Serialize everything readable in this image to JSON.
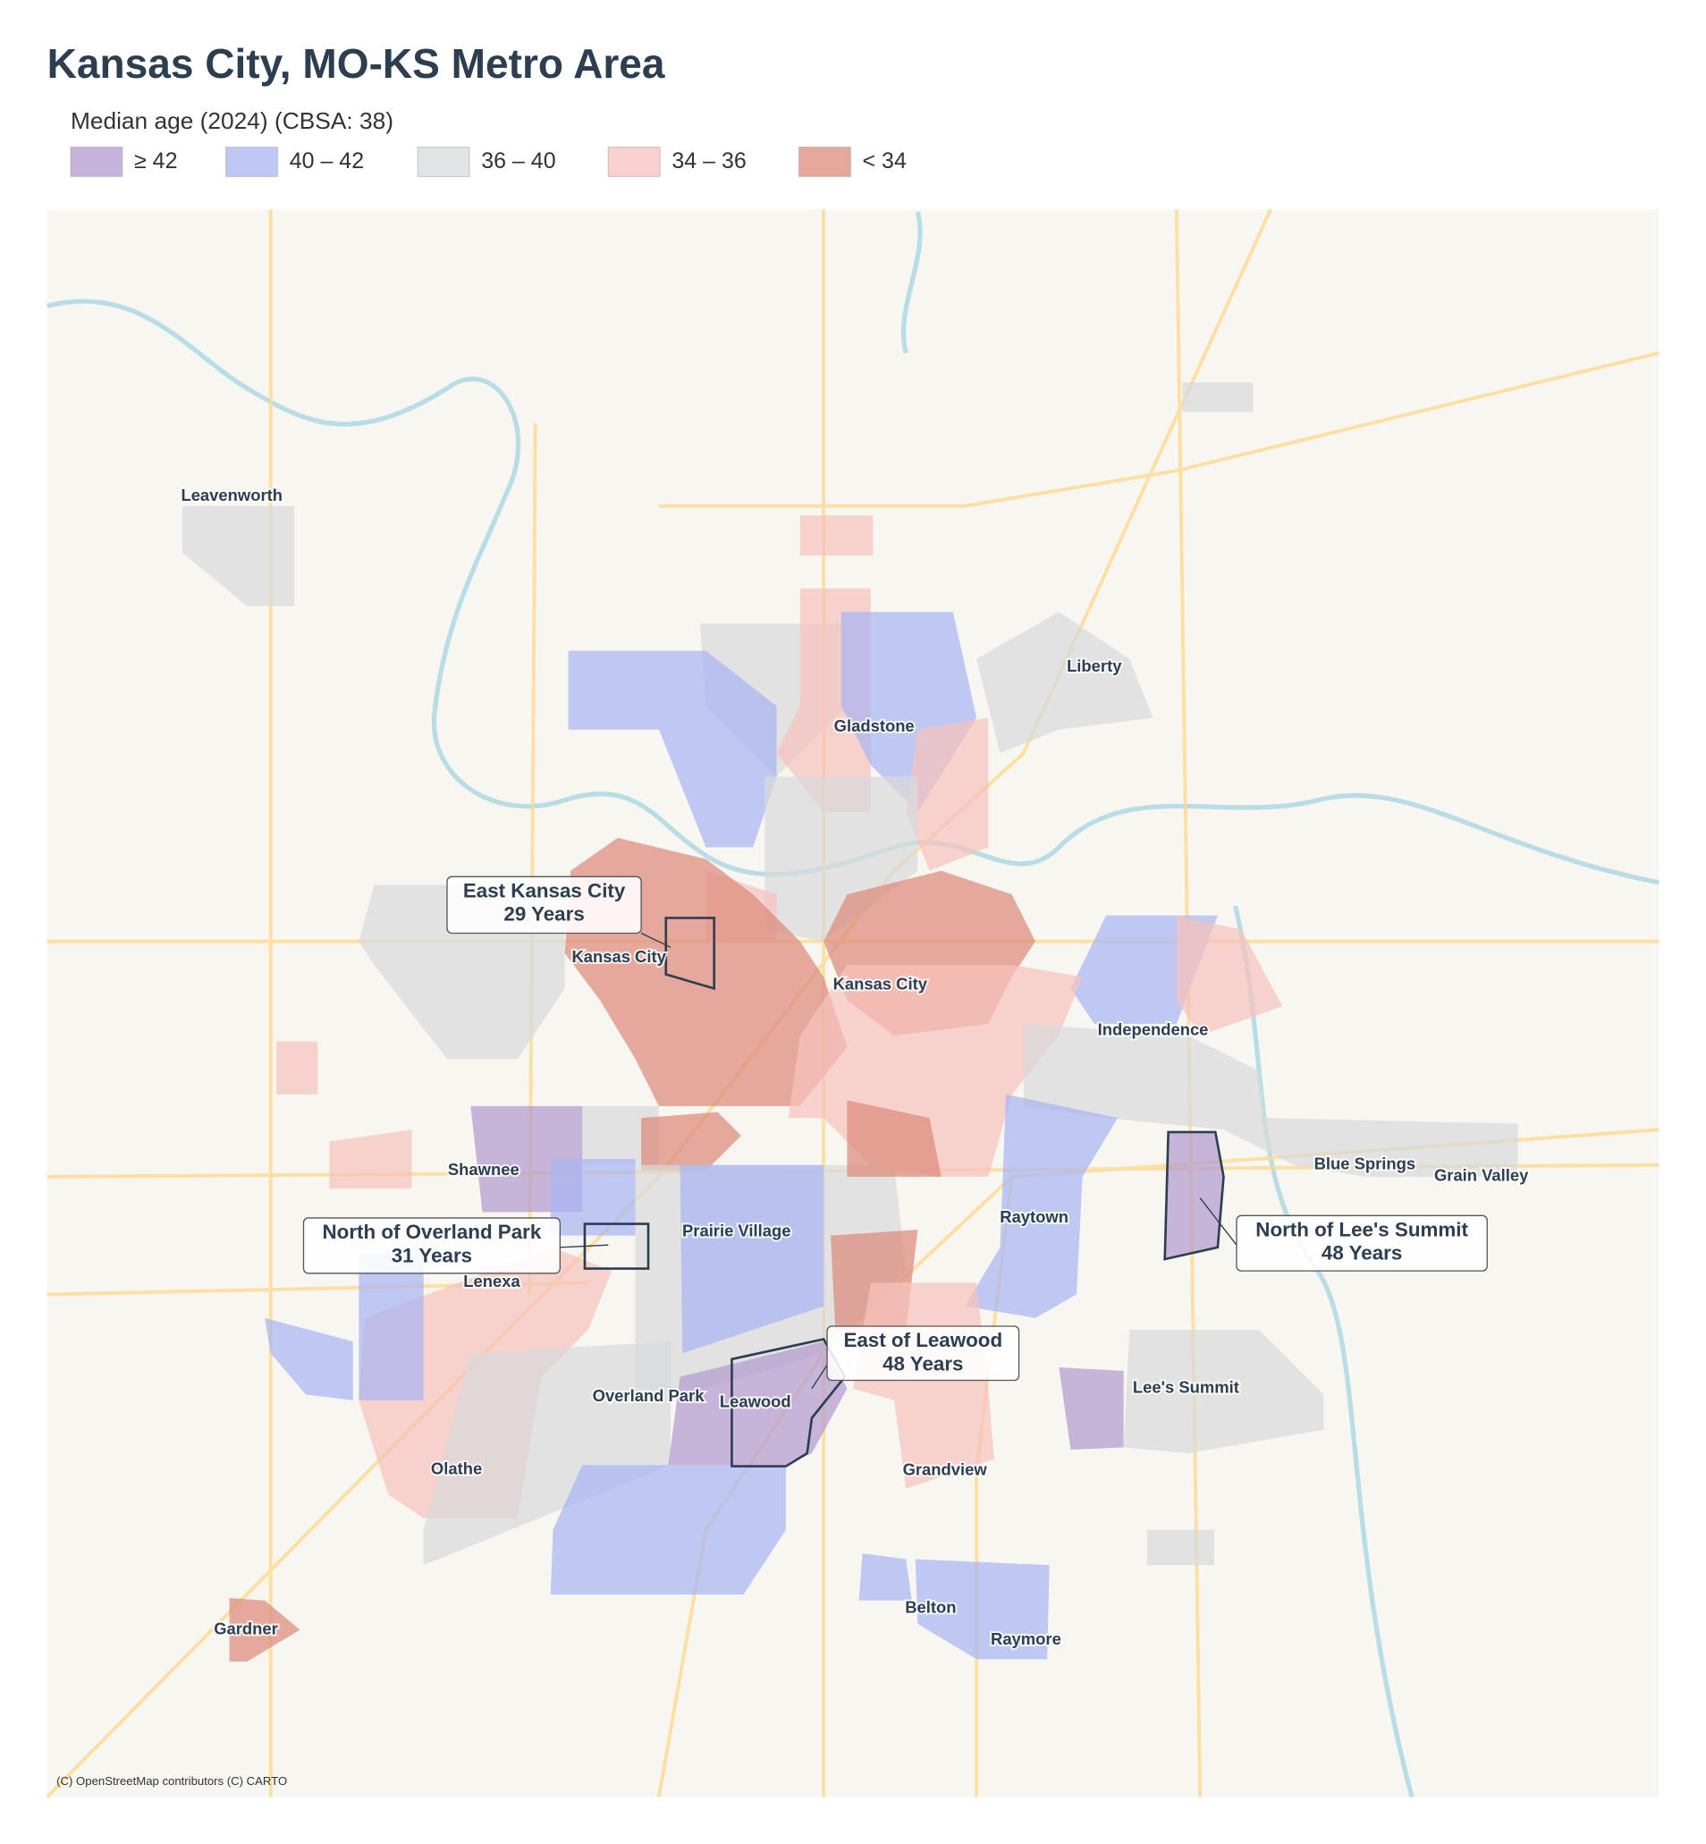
{
  "title": "Kansas City, MO-KS Metro Area",
  "legend": {
    "title": "Median age (2024)  (CBSA: 38)",
    "items": [
      "≥ 42",
      "40 – 42",
      "36 – 40",
      "34 – 36",
      "< 34"
    ]
  },
  "places": [
    "Leavenworth",
    "Liberty",
    "Gladstone",
    "Kansas City",
    "Kansas City",
    "Independence",
    "Shawnee",
    "Blue Springs",
    "Grain Valley",
    "Prairie Village",
    "Raytown",
    "Lenexa",
    "Overland Park",
    "Leawood",
    "Lee's Summit",
    "Olathe",
    "Grandview",
    "Belton",
    "Raymore",
    "Gardner"
  ],
  "callouts": [
    {
      "name": "East Kansas City",
      "value": "29 Years"
    },
    {
      "name": "North of Overland Park",
      "value": "31 Years"
    },
    {
      "name": "North of Lee's Summit",
      "value": "48 Years"
    },
    {
      "name": "East of Leawood",
      "value": "48 Years"
    }
  ],
  "attribution": "(C) OpenStreetMap contributors (C) CARTO"
}
